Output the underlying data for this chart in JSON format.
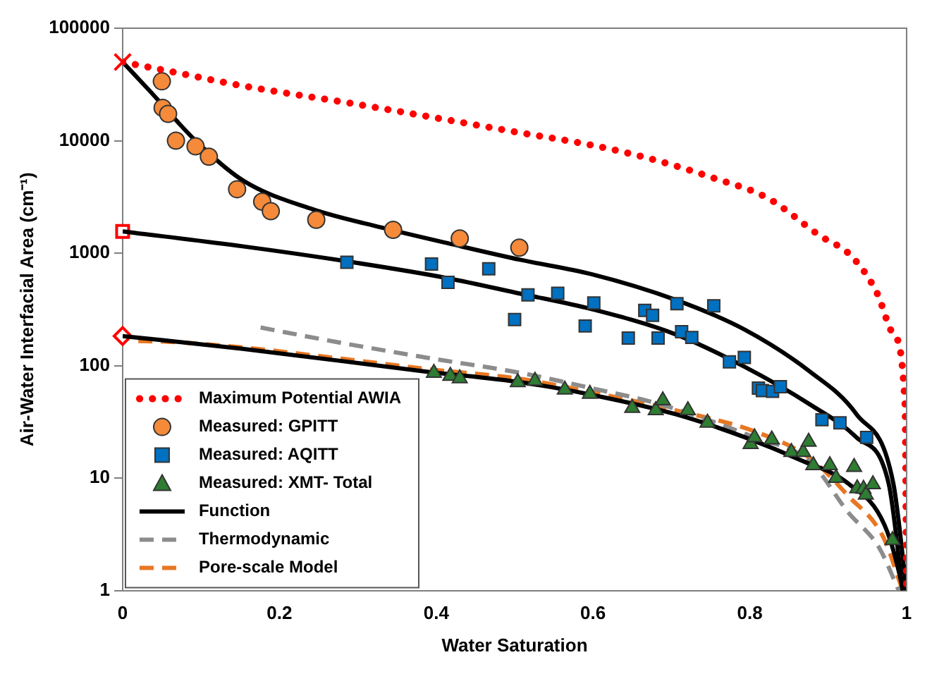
{
  "chart_data": {
    "type": "scatter",
    "xlabel": "Water Saturation",
    "ylabel": "Air-Water Interfacial Area (cm⁻¹)",
    "xlim": [
      0,
      1
    ],
    "xticks": [
      0,
      0.2,
      0.4,
      0.6,
      0.8,
      1
    ],
    "ylim": [
      1,
      100000
    ],
    "yticks": [
      1,
      10,
      100,
      1000,
      10000,
      100000
    ],
    "log": "y",
    "grid": false,
    "legend": "bottom left",
    "series": [
      {
        "name": "Maximum Potential AWIA",
        "type": "line",
        "line_style": "dotted",
        "marker": "none",
        "color": "#ff0000",
        "x": [
          0,
          0.063,
          0.15,
          0.3,
          0.5,
          0.606,
          0.68,
          0.752,
          0.823,
          0.888,
          0.93,
          0.962,
          0.983,
          0.998,
          1
        ],
        "values": [
          50000,
          41000,
          31000,
          21000,
          12000,
          8900,
          6700,
          4700,
          3080,
          1450,
          935,
          445,
          190,
          45,
          1
        ]
      },
      {
        "name": "Measured: GPITT",
        "type": "scatter",
        "marker": "circle",
        "color": "#f58a3a",
        "x": [
          0.05,
          0.051,
          0.058,
          0.068,
          0.093,
          0.11,
          0.146,
          0.178,
          0.189,
          0.247,
          0.345,
          0.43,
          0.506
        ],
        "values": [
          33700,
          19600,
          17300,
          10000,
          8900,
          7200,
          3700,
          2870,
          2360,
          1980,
          1610,
          1350,
          1120
        ]
      },
      {
        "name": "Measured: AQITT",
        "type": "scatter",
        "marker": "square",
        "color": "#0070c0",
        "x": [
          0.286,
          0.394,
          0.415,
          0.467,
          0.5,
          0.517,
          0.555,
          0.59,
          0.601,
          0.645,
          0.666,
          0.676,
          0.683,
          0.707,
          0.713,
          0.726,
          0.754,
          0.774,
          0.793,
          0.811,
          0.816,
          0.829,
          0.839,
          0.892,
          0.915,
          0.949
        ],
        "values": [
          830,
          800,
          550,
          725,
          257,
          425,
          440,
          225,
          360,
          176,
          310,
          280,
          176,
          355,
          200,
          178,
          340,
          108,
          118,
          63,
          60,
          59,
          65,
          33,
          31,
          23
        ]
      },
      {
        "name": "Measured: XMT- Total",
        "type": "scatter",
        "marker": "triangle",
        "color": "#2e7d32",
        "x": [
          0.397,
          0.418,
          0.43,
          0.504,
          0.526,
          0.564,
          0.596,
          0.65,
          0.68,
          0.689,
          0.721,
          0.746,
          0.801,
          0.806,
          0.828,
          0.853,
          0.868,
          0.875,
          0.881,
          0.902,
          0.91,
          0.933,
          0.937,
          0.945,
          0.948,
          0.957,
          0.982
        ],
        "values": [
          86,
          81,
          77,
          71,
          73,
          61,
          56,
          42,
          40,
          49,
          40,
          31,
          20,
          23,
          22,
          17,
          17,
          21,
          13,
          13,
          10,
          12.5,
          8.1,
          8,
          7.1,
          8.8,
          2.8
        ]
      },
      {
        "name": "Function",
        "type": "line",
        "line_style": "solid",
        "marker": "none",
        "color": "#000000",
        "x": [
          0,
          0.034,
          0.093,
          0.153,
          0.242,
          0.33,
          0.42,
          0.508,
          0.598,
          0.705,
          0.794,
          0.877,
          0.936,
          0.983,
          1
        ],
        "values": [
          50000,
          28000,
          10000,
          4450,
          2460,
          1690,
          1200,
          870,
          650,
          385,
          208,
          88,
          37,
          9,
          1
        ]
      },
      {
        "type": "line",
        "line_style": "solid",
        "marker": "none",
        "color": "#000000",
        "x": [
          0,
          0.153,
          0.284,
          0.414,
          0.508,
          0.598,
          0.705,
          0.794,
          0.877,
          0.936,
          0.977,
          0.995
        ],
        "values": [
          1560,
          1150,
          850,
          600,
          435,
          318,
          190,
          97,
          45,
          23,
          9,
          1
        ]
      },
      {
        "type": "line",
        "line_style": "solid",
        "marker": "none",
        "color": "#000000",
        "x": [
          0,
          0.153,
          0.39,
          0.508,
          0.598,
          0.705,
          0.794,
          0.865,
          0.925,
          0.972,
          0.993,
          0.995
        ],
        "values": [
          183,
          141,
          88,
          71,
          55,
          37,
          23,
          14.4,
          9,
          3.8,
          1.2,
          1
        ]
      },
      {
        "name": "Thermodynamic",
        "type": "line",
        "line_style": "dashed",
        "marker": "none",
        "color": "#8c8c8c",
        "x": [
          0.176,
          0.271,
          0.39,
          0.508,
          0.598,
          0.687,
          0.806,
          0.877,
          0.925,
          0.965,
          0.99
        ],
        "values": [
          218,
          163,
          117,
          86,
          63,
          45,
          23,
          14,
          5,
          2.4,
          1
        ]
      },
      {
        "name": "Pore-scale Model",
        "type": "line",
        "line_style": "dashed",
        "marker": "none",
        "color": "#e87722",
        "x": [
          0.02,
          0.057,
          0.153,
          0.271,
          0.39,
          0.508,
          0.598,
          0.705,
          0.806,
          0.877,
          0.925,
          0.97,
          0.995
        ],
        "values": [
          165,
          163,
          145,
          117,
          93,
          76,
          58,
          40,
          26,
          15,
          7,
          3,
          1
        ]
      },
      {
        "type": "scatter",
        "marker": "cross",
        "color": "#ff0000",
        "x": [
          0
        ],
        "values": [
          50000
        ]
      },
      {
        "type": "scatter",
        "marker": "square",
        "color": "#ff0000",
        "x": [
          0
        ],
        "values": [
          1560
        ]
      },
      {
        "type": "scatter",
        "marker": "diamond",
        "color": "#ff0000",
        "x": [
          0
        ],
        "values": [
          183
        ]
      }
    ]
  }
}
